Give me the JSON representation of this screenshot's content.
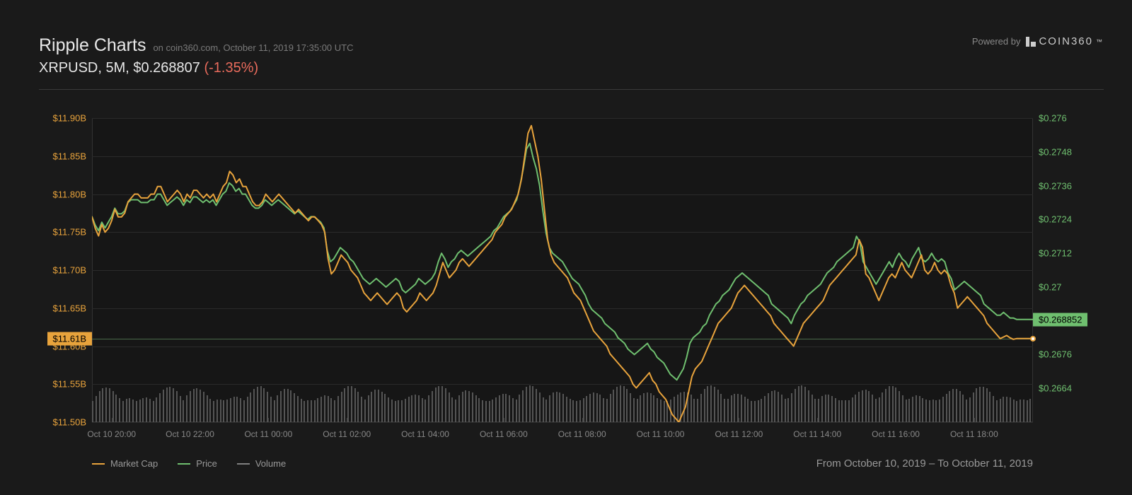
{
  "header": {
    "title": "Ripple Charts",
    "subtitle": "on coin360.com, October 11, 2019 17:35:00 UTC",
    "pair": "XRPUSD, 5M, $0.268807",
    "change": "(-1.35%)",
    "powered_by": "Powered by",
    "brand": "COIN360",
    "tm": "™"
  },
  "chart": {
    "type": "line",
    "background_color": "#161616",
    "grid_color": "#2a2a2a",
    "axis_text_color": "#888888",
    "left_axis": {
      "color": "#e8a33c",
      "min": 11.5,
      "max": 11.9,
      "ticks": [
        {
          "v": 11.9,
          "label": "$11.90B"
        },
        {
          "v": 11.85,
          "label": "$11.85B"
        },
        {
          "v": 11.8,
          "label": "$11.80B"
        },
        {
          "v": 11.75,
          "label": "$11.75B"
        },
        {
          "v": 11.7,
          "label": "$11.70B"
        },
        {
          "v": 11.65,
          "label": "$11.65B"
        },
        {
          "v": 11.6,
          "label": "$11.60B"
        },
        {
          "v": 11.55,
          "label": "$11.55B"
        },
        {
          "v": 11.5,
          "label": "$11.50B"
        }
      ],
      "current": {
        "v": 11.61,
        "label": "$11.61B",
        "bg": "#e8a33c",
        "fg": "#000000"
      }
    },
    "right_axis": {
      "color": "#6fbf6f",
      "min": 0.2652,
      "max": 0.276,
      "ticks": [
        {
          "v": 0.276,
          "label": "$0.276"
        },
        {
          "v": 0.2748,
          "label": "$0.2748"
        },
        {
          "v": 0.2736,
          "label": "$0.2736"
        },
        {
          "v": 0.2724,
          "label": "$0.2724"
        },
        {
          "v": 0.2712,
          "label": "$0.2712"
        },
        {
          "v": 0.27,
          "label": "$0.27"
        },
        {
          "v": 0.2688,
          "label": "$0.2688"
        },
        {
          "v": 0.2676,
          "label": "$0.2676"
        },
        {
          "v": 0.2664,
          "label": "$0.2664"
        }
      ],
      "current": {
        "v": 0.268852,
        "label": "$0.268852",
        "bg": "#6fbf6f",
        "fg": "#000000"
      }
    },
    "x_axis": {
      "start": 0,
      "end": 288,
      "ticks": [
        {
          "t": 6,
          "label": "Oct 10 20:00"
        },
        {
          "t": 30,
          "label": "Oct 10 22:00"
        },
        {
          "t": 54,
          "label": "Oct 11 00:00"
        },
        {
          "t": 78,
          "label": "Oct 11 02:00"
        },
        {
          "t": 102,
          "label": "Oct 11 04:00"
        },
        {
          "t": 126,
          "label": "Oct 11 06:00"
        },
        {
          "t": 150,
          "label": "Oct 11 08:00"
        },
        {
          "t": 174,
          "label": "Oct 11 10:00"
        },
        {
          "t": 198,
          "label": "Oct 11 12:00"
        },
        {
          "t": 222,
          "label": "Oct 11 14:00"
        },
        {
          "t": 246,
          "label": "Oct 11 16:00"
        },
        {
          "t": 270,
          "label": "Oct 11 18:00"
        }
      ]
    },
    "series": {
      "marketcap": {
        "color": "#e8a33c",
        "width": 2,
        "data": [
          11.77,
          11.755,
          11.745,
          11.76,
          11.75,
          11.755,
          11.765,
          11.78,
          11.77,
          11.77,
          11.775,
          11.79,
          11.795,
          11.8,
          11.8,
          11.795,
          11.795,
          11.795,
          11.8,
          11.8,
          11.81,
          11.81,
          11.8,
          11.79,
          11.795,
          11.8,
          11.805,
          11.8,
          11.79,
          11.8,
          11.795,
          11.805,
          11.805,
          11.8,
          11.795,
          11.8,
          11.795,
          11.8,
          11.79,
          11.8,
          11.81,
          11.815,
          11.83,
          11.825,
          11.815,
          11.82,
          11.81,
          11.81,
          11.8,
          11.79,
          11.785,
          11.785,
          11.79,
          11.8,
          11.795,
          11.79,
          11.795,
          11.8,
          11.795,
          11.79,
          11.785,
          11.78,
          11.775,
          11.78,
          11.775,
          11.77,
          11.765,
          11.77,
          11.77,
          11.765,
          11.76,
          11.75,
          11.715,
          11.695,
          11.7,
          11.71,
          11.72,
          11.715,
          11.71,
          11.7,
          11.695,
          11.69,
          11.68,
          11.67,
          11.665,
          11.66,
          11.665,
          11.67,
          11.665,
          11.66,
          11.655,
          11.66,
          11.665,
          11.67,
          11.665,
          11.65,
          11.645,
          11.65,
          11.655,
          11.66,
          11.67,
          11.665,
          11.66,
          11.665,
          11.67,
          11.68,
          11.695,
          11.71,
          11.7,
          11.69,
          11.695,
          11.7,
          11.71,
          11.715,
          11.71,
          11.705,
          11.71,
          11.715,
          11.72,
          11.725,
          11.73,
          11.735,
          11.74,
          11.75,
          11.755,
          11.76,
          11.77,
          11.775,
          11.78,
          11.79,
          11.8,
          11.82,
          11.85,
          11.88,
          11.89,
          11.87,
          11.85,
          11.82,
          11.78,
          11.74,
          11.72,
          11.71,
          11.705,
          11.7,
          11.695,
          11.69,
          11.68,
          11.67,
          11.665,
          11.66,
          11.65,
          11.64,
          11.63,
          11.62,
          11.615,
          11.61,
          11.605,
          11.6,
          11.59,
          11.585,
          11.58,
          11.575,
          11.57,
          11.565,
          11.56,
          11.55,
          11.545,
          11.55,
          11.555,
          11.56,
          11.565,
          11.555,
          11.55,
          11.54,
          11.535,
          11.53,
          11.52,
          11.51,
          11.505,
          11.5,
          11.51,
          11.52,
          11.54,
          11.56,
          11.57,
          11.575,
          11.58,
          11.59,
          11.6,
          11.61,
          11.62,
          11.63,
          11.635,
          11.64,
          11.645,
          11.65,
          11.66,
          11.67,
          11.675,
          11.68,
          11.675,
          11.67,
          11.665,
          11.66,
          11.655,
          11.65,
          11.645,
          11.64,
          11.63,
          11.625,
          11.62,
          11.615,
          11.61,
          11.605,
          11.6,
          11.61,
          11.62,
          11.63,
          11.635,
          11.64,
          11.645,
          11.65,
          11.655,
          11.66,
          11.67,
          11.68,
          11.685,
          11.69,
          11.695,
          11.7,
          11.705,
          11.71,
          11.715,
          11.72,
          11.74,
          11.73,
          11.695,
          11.69,
          11.68,
          11.67,
          11.66,
          11.67,
          11.68,
          11.69,
          11.695,
          11.69,
          11.7,
          11.71,
          11.7,
          11.695,
          11.69,
          11.7,
          11.71,
          11.72,
          11.7,
          11.695,
          11.7,
          11.71,
          11.7,
          11.695,
          11.7,
          11.695,
          11.68,
          11.67,
          11.65,
          11.655,
          11.66,
          11.665,
          11.66,
          11.655,
          11.65,
          11.645,
          11.64,
          11.63,
          11.625,
          11.62,
          11.615,
          11.61,
          11.612,
          11.614,
          11.611,
          11.609,
          11.61,
          11.61,
          11.61,
          11.61,
          11.61,
          11.61
        ]
      },
      "price": {
        "color": "#6fbf6f",
        "width": 2,
        "data": [
          0.2725,
          0.2722,
          0.272,
          0.2723,
          0.2721,
          0.2723,
          0.2725,
          0.2728,
          0.2726,
          0.2726,
          0.2727,
          0.273,
          0.2731,
          0.2731,
          0.2731,
          0.273,
          0.273,
          0.273,
          0.2731,
          0.2731,
          0.2733,
          0.2733,
          0.2731,
          0.2729,
          0.273,
          0.2731,
          0.2732,
          0.2731,
          0.2729,
          0.2731,
          0.273,
          0.2732,
          0.2732,
          0.2731,
          0.273,
          0.2731,
          0.273,
          0.2731,
          0.2729,
          0.2731,
          0.2733,
          0.2734,
          0.2737,
          0.2736,
          0.2734,
          0.2735,
          0.2733,
          0.2733,
          0.2731,
          0.2729,
          0.2728,
          0.2728,
          0.2729,
          0.2731,
          0.273,
          0.2729,
          0.273,
          0.2731,
          0.273,
          0.2729,
          0.2728,
          0.2727,
          0.2726,
          0.2727,
          0.2726,
          0.2725,
          0.2724,
          0.2725,
          0.2725,
          0.2724,
          0.2723,
          0.2721,
          0.2713,
          0.2709,
          0.271,
          0.2712,
          0.2714,
          0.2713,
          0.2712,
          0.271,
          0.2709,
          0.2707,
          0.2705,
          0.2703,
          0.2702,
          0.2701,
          0.2702,
          0.2703,
          0.2702,
          0.2701,
          0.27,
          0.2701,
          0.2702,
          0.2703,
          0.2702,
          0.2699,
          0.2698,
          0.2699,
          0.27,
          0.2701,
          0.2703,
          0.2702,
          0.2701,
          0.2702,
          0.2703,
          0.2705,
          0.2709,
          0.2712,
          0.271,
          0.2707,
          0.2709,
          0.271,
          0.2712,
          0.2713,
          0.2712,
          0.2711,
          0.2712,
          0.2713,
          0.2714,
          0.2715,
          0.2716,
          0.2717,
          0.2718,
          0.272,
          0.2721,
          0.2723,
          0.2725,
          0.2726,
          0.2727,
          0.2729,
          0.2731,
          0.2736,
          0.2742,
          0.2749,
          0.2751,
          0.2746,
          0.2742,
          0.2736,
          0.2727,
          0.2719,
          0.2714,
          0.2712,
          0.2711,
          0.271,
          0.2709,
          0.2707,
          0.2705,
          0.2703,
          0.2702,
          0.2701,
          0.2699,
          0.2697,
          0.2694,
          0.2692,
          0.2691,
          0.269,
          0.2689,
          0.2687,
          0.2686,
          0.2685,
          0.2684,
          0.2682,
          0.2681,
          0.268,
          0.2678,
          0.2677,
          0.2676,
          0.2677,
          0.2678,
          0.2679,
          0.268,
          0.2678,
          0.2677,
          0.2675,
          0.2674,
          0.2673,
          0.2671,
          0.2669,
          0.2668,
          0.2667,
          0.2669,
          0.2671,
          0.2675,
          0.268,
          0.2682,
          0.2683,
          0.2684,
          0.2686,
          0.2687,
          0.269,
          0.2692,
          0.2694,
          0.2695,
          0.2697,
          0.2698,
          0.2699,
          0.2701,
          0.2703,
          0.2704,
          0.2705,
          0.2704,
          0.2703,
          0.2702,
          0.2701,
          0.27,
          0.2699,
          0.2698,
          0.2697,
          0.2694,
          0.2693,
          0.2692,
          0.2691,
          0.269,
          0.2689,
          0.2687,
          0.269,
          0.2692,
          0.2694,
          0.2695,
          0.2697,
          0.2698,
          0.2699,
          0.27,
          0.2701,
          0.2703,
          0.2705,
          0.2706,
          0.2707,
          0.2709,
          0.271,
          0.2711,
          0.2712,
          0.2713,
          0.2714,
          0.2718,
          0.2716,
          0.2709,
          0.2707,
          0.2705,
          0.2703,
          0.2701,
          0.2703,
          0.2705,
          0.2707,
          0.2709,
          0.2707,
          0.271,
          0.2712,
          0.271,
          0.2709,
          0.2707,
          0.271,
          0.2712,
          0.2714,
          0.271,
          0.2709,
          0.271,
          0.2712,
          0.271,
          0.2709,
          0.271,
          0.2709,
          0.2705,
          0.2703,
          0.2699,
          0.27,
          0.2701,
          0.2702,
          0.2701,
          0.27,
          0.2699,
          0.2698,
          0.2697,
          0.2694,
          0.2693,
          0.2692,
          0.2691,
          0.269,
          0.269,
          0.2691,
          0.269,
          0.2689,
          0.2689,
          0.26885,
          0.26885,
          0.26885,
          0.26885,
          0.26885,
          0.26885
        ]
      }
    },
    "end_marker": {
      "color": "#ffffff",
      "border": "#e8a33c"
    }
  },
  "legend": {
    "items": [
      {
        "label": "Market Cap",
        "color": "#e8a33c"
      },
      {
        "label": "Price",
        "color": "#6fbf6f"
      },
      {
        "label": "Volume",
        "color": "#808080"
      }
    ]
  },
  "footer": {
    "date_range": "From October 10, 2019 – To October 11, 2019"
  }
}
